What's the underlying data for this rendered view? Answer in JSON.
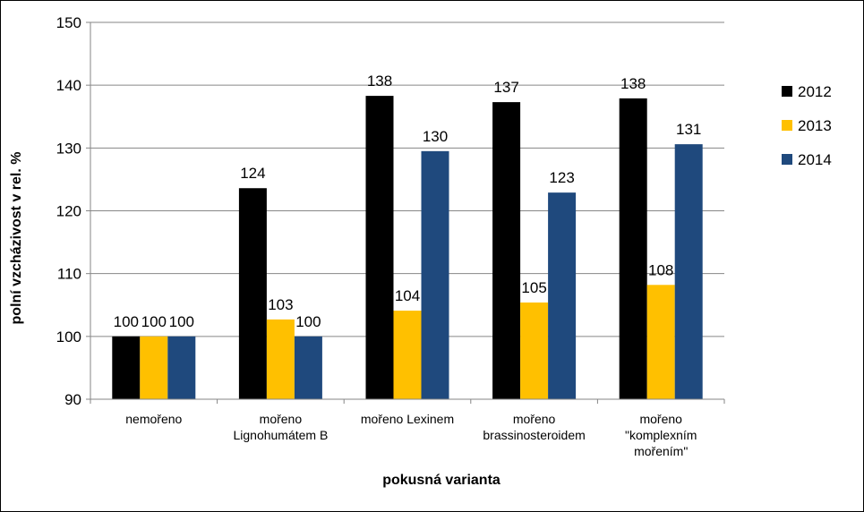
{
  "chart_data": {
    "type": "bar",
    "xlabel": "pokusná varianta",
    "ylabel": "polní vzcházivost v rel. %",
    "ylim": [
      90,
      150
    ],
    "yticks": [
      90,
      100,
      110,
      120,
      130,
      140,
      150
    ],
    "grid": true,
    "legend": "right",
    "categories": [
      [
        "nemořeno"
      ],
      [
        "mořeno",
        "Lignohumátem B"
      ],
      [
        "mořeno Lexinem"
      ],
      [
        "mořeno",
        "brassinosteroidem"
      ],
      [
        "mořeno",
        "\"komplexním",
        "mořením\""
      ]
    ],
    "series": [
      {
        "name": "2012",
        "color": "#000000",
        "values": [
          100,
          123.6,
          138.3,
          137.3,
          137.9
        ],
        "labels": [
          "100",
          "124",
          "138",
          "137",
          "138"
        ]
      },
      {
        "name": "2013",
        "color": "#FFC000",
        "values": [
          100,
          102.7,
          104.1,
          105.4,
          108.2
        ],
        "labels": [
          "100",
          "103",
          "104",
          "105",
          "108"
        ]
      },
      {
        "name": "2014",
        "color": "#1F497D",
        "values": [
          100,
          100,
          129.5,
          122.9,
          130.6
        ],
        "labels": [
          "100",
          "100",
          "130",
          "123",
          "131"
        ]
      }
    ]
  }
}
